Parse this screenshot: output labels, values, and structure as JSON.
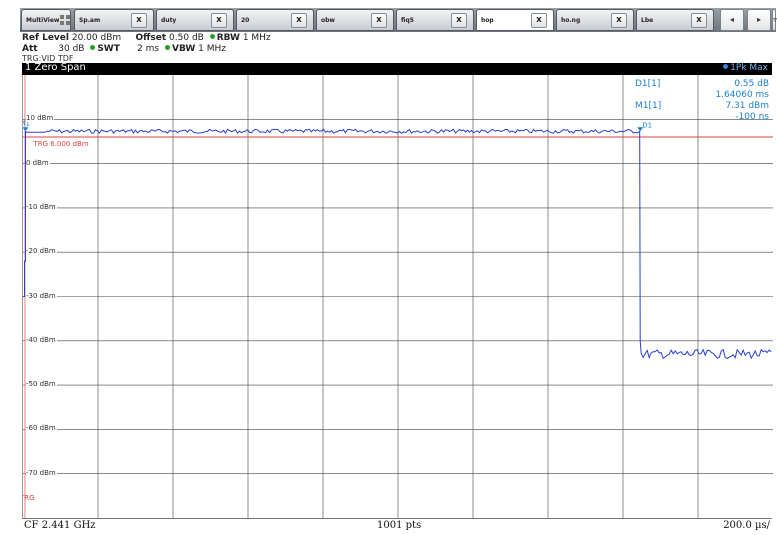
{
  "tabs": [
    {
      "label": "MultiView",
      "active": false
    },
    {
      "label": "Sp.am",
      "active": false
    },
    {
      "label": "duty",
      "active": false
    },
    {
      "label": "20",
      "active": false
    },
    {
      "label": "obw",
      "active": false
    },
    {
      "label": "fiq5",
      "active": false
    },
    {
      "label": "hop",
      "active": true
    },
    {
      "label": "ho.ng",
      "active": false
    },
    {
      "label": "Lbe",
      "active": false
    }
  ],
  "close_label": "X",
  "nav": {
    "prev": "◂",
    "next": "▸",
    "menu": "▿"
  },
  "header": {
    "ref_level_label": "Ref Level",
    "ref_level_value": "20.00 dBm",
    "offset_label": "Offset",
    "offset_value": "0.50 dB",
    "rbw_label": "RBW",
    "rbw_value": "1 MHz",
    "att_label": "Att",
    "att_value": "30 dB",
    "swt_label": "SWT",
    "swt_value": "2 ms",
    "vbw_label": "VBW",
    "vbw_value": "1 MHz",
    "trigger": "TRG:VID TDF"
  },
  "window": {
    "title": "1 Zero Span",
    "trace": "1Pk Max"
  },
  "markers": {
    "d1_label": "D1[1]",
    "d1_level": "0.55 dB",
    "d1_time": "1.64060 ms",
    "m1_label": "M1[1]",
    "m1_level": "7.31 dBm",
    "m1_time": "-100 ns",
    "m1_tag": "M1",
    "d1_tag": "D1"
  },
  "trigger_line": {
    "label": "TRG 6.000 dBm",
    "tag": "TRG"
  },
  "footer": {
    "center_freq": "CF 2.441 GHz",
    "points": "1001 pts",
    "time_div": "200.0 µs/"
  },
  "colors": {
    "trace": "#2a3fd0",
    "trigger": "#e04040",
    "marker": "#1a7fd0"
  },
  "chart_data": {
    "type": "line",
    "ylabels": [
      "10 dBm",
      "0 dBm",
      "-10 dBm",
      "-20 dBm",
      "-30 dBm",
      "-40 dBm",
      "-50 dBm",
      "-60 dBm",
      "-70 dBm"
    ],
    "ylim": [
      -80,
      20
    ],
    "xlim_ms": [
      0,
      2
    ],
    "trigger_level_dbm": 6.0,
    "burst": {
      "on_level_dbm": 7.3,
      "off_level_dbm": -43,
      "start_ms": -0.0001,
      "duration_ms": 1.6406
    },
    "grid": true
  }
}
